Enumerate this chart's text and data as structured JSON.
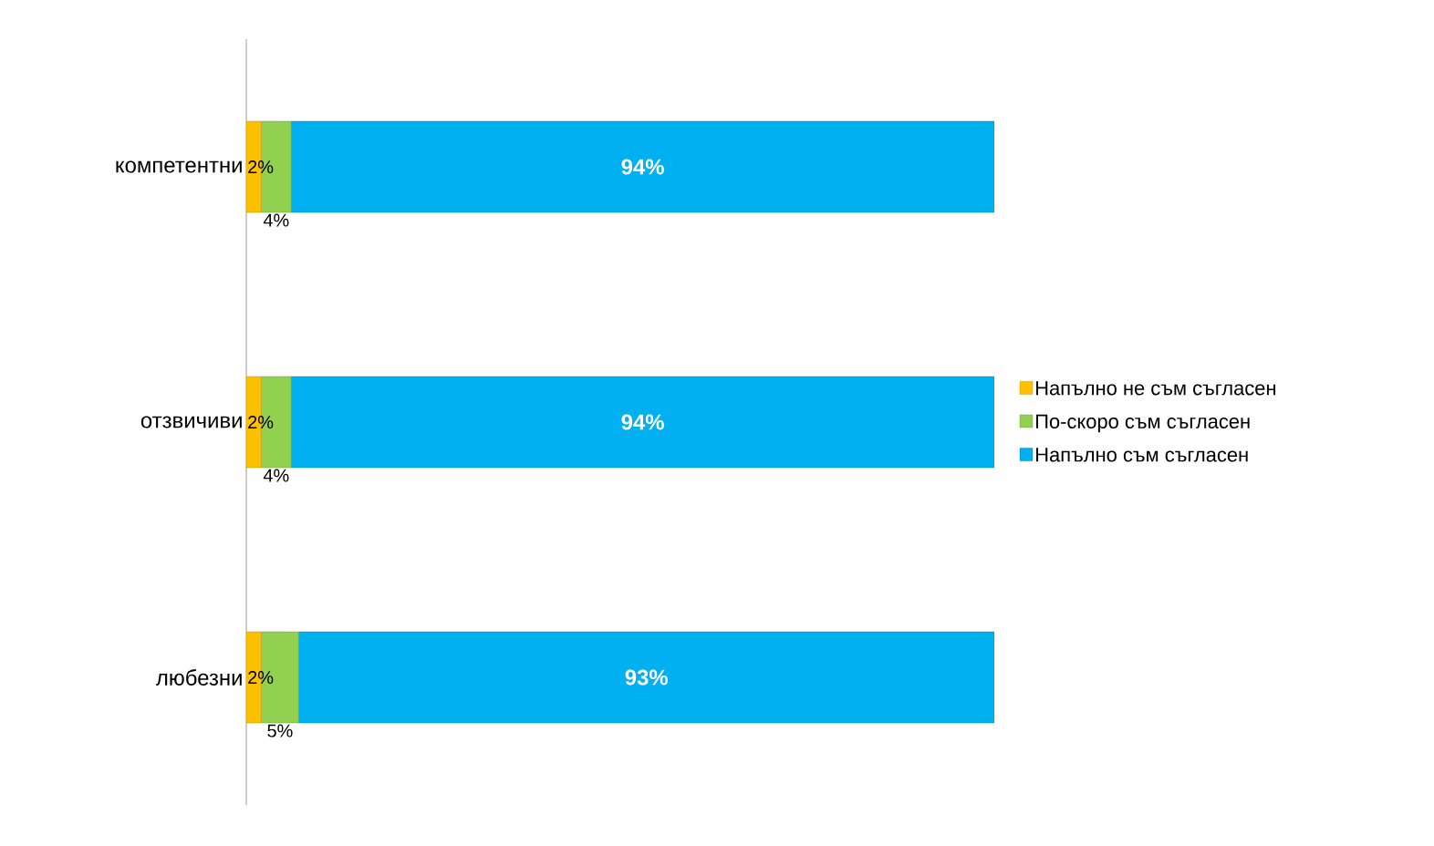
{
  "chart_data": {
    "type": "bar",
    "orientation": "horizontal",
    "stacked": true,
    "categories": [
      "компетентни",
      "отзвичиви",
      "любезни"
    ],
    "series": [
      {
        "name": "Напълно не съм съгласен",
        "color": "#ffc000",
        "values": [
          2,
          2,
          2
        ],
        "value_labels": [
          "2%",
          "2%",
          "2%"
        ]
      },
      {
        "name": "По-скоро съм съгласен",
        "color": "#92d050",
        "values": [
          4,
          4,
          5
        ],
        "value_labels": [
          "4%",
          "4%",
          "5%"
        ]
      },
      {
        "name": "Напълно съм съгласен",
        "color": "#00b0f0",
        "values": [
          94,
          94,
          93
        ],
        "value_labels": [
          "94%",
          "94%",
          "93%"
        ]
      }
    ],
    "legend": "right",
    "tick_labels": "y"
  }
}
